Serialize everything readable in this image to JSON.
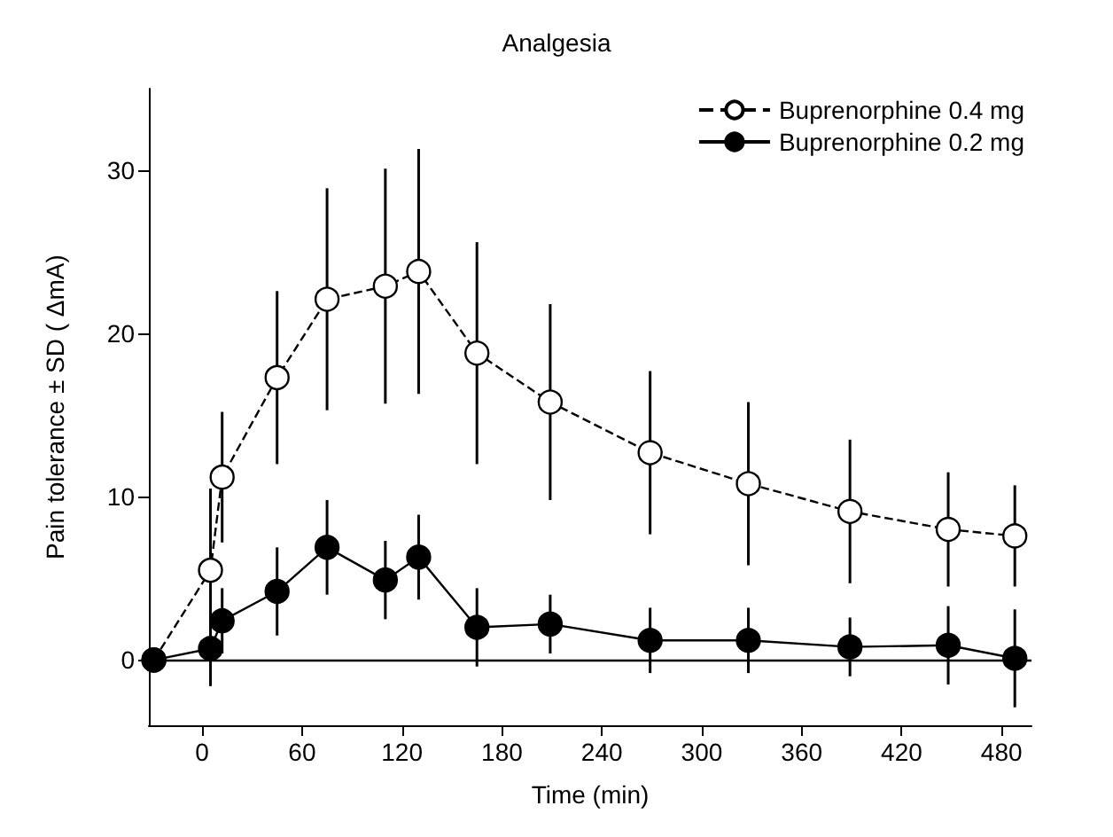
{
  "chart_data": {
    "type": "line",
    "title": "Analgesia",
    "xlabel": "Time (min)",
    "ylabel": "Pain tolerance ± SD ( ΔmA)",
    "xlim": [
      -32,
      498
    ],
    "xticks": [
      0,
      60,
      120,
      180,
      240,
      300,
      360,
      420,
      480
    ],
    "ylim": [
      -4,
      35
    ],
    "yticks": [
      0,
      10,
      20,
      30
    ],
    "legend": "top right",
    "marker": "circle",
    "ref_lines": [
      {
        "axis": "y",
        "value": 0,
        "color": "#000000",
        "line_style": "solid"
      }
    ],
    "series": [
      {
        "name": "Buprenorphine 0.4 mg",
        "color": "#000000",
        "line_style": "dashed",
        "x": [
          -29,
          5,
          12,
          45,
          75,
          110,
          130,
          165,
          209,
          269,
          328,
          389,
          448,
          488
        ],
        "values": [
          0,
          5.5,
          11.2,
          17.3,
          22.1,
          22.9,
          23.8,
          18.8,
          15.8,
          12.7,
          10.8,
          9.1,
          8.0,
          7.6
        ],
        "errors": [
          null,
          5,
          4,
          5.3,
          6.8,
          7.2,
          7.5,
          6.8,
          6,
          5,
          5,
          4.4,
          3.5,
          3.1
        ]
      },
      {
        "name": "Buprenorphine 0.2 mg",
        "color": "#000000",
        "line_style": "solid",
        "x": [
          -29,
          5,
          12,
          45,
          75,
          110,
          130,
          165,
          209,
          269,
          328,
          389,
          448,
          488
        ],
        "values": [
          0,
          0.7,
          2.4,
          4.2,
          6.9,
          4.9,
          6.3,
          2.0,
          2.2,
          1.2,
          1.2,
          0.8,
          0.9,
          0.1
        ],
        "errors": [
          null,
          2.3,
          2,
          2.7,
          2.9,
          2.4,
          2.6,
          2.4,
          1.8,
          2,
          2,
          1.8,
          2.4,
          3
        ]
      }
    ]
  }
}
